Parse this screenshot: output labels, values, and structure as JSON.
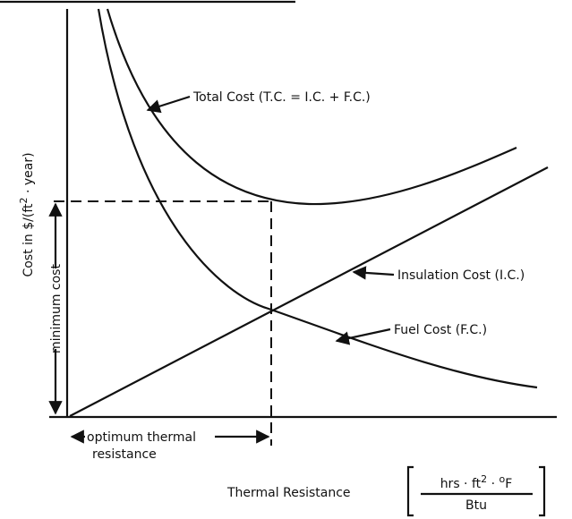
{
  "labels": {
    "total_cost": "Total Cost (T.C. = I.C. + F.C.)",
    "insulation_cost": "Insulation Cost (I.C.)",
    "fuel_cost": "Fuel Cost (F.C.)",
    "minimum_cost": "minimum cost",
    "optimum": [
      "optimum thermal",
      "resistance"
    ],
    "y_axis": {
      "before": "Cost in $/(ft",
      "sup": "2",
      "after": " · year)"
    },
    "x_axis": "Thermal Resistance",
    "units": {
      "numerator": {
        "a": "hrs · ft",
        "sup1": "2",
        "b": " · ",
        "sup2": "o",
        "c": "F"
      },
      "denominator": "Btu"
    }
  }
}
